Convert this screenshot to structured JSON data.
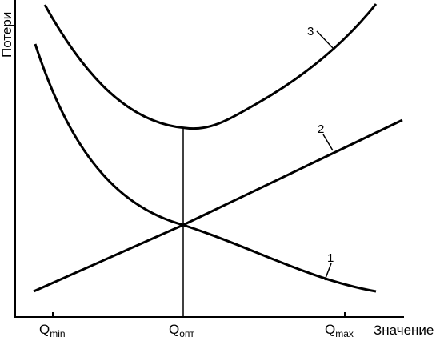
{
  "chart_data": {
    "type": "line",
    "ylabel": "Потери",
    "xlabel": "Значение",
    "x_ticks": [
      {
        "main": "Q",
        "sub": "min"
      },
      {
        "main": "Q",
        "sub": "опт"
      },
      {
        "main": "Q",
        "sub": "max"
      }
    ],
    "series": [
      {
        "label": "1"
      },
      {
        "label": "2"
      },
      {
        "label": "3"
      }
    ],
    "colors": {
      "ink": "#000000",
      "background": "#ffffff"
    }
  }
}
